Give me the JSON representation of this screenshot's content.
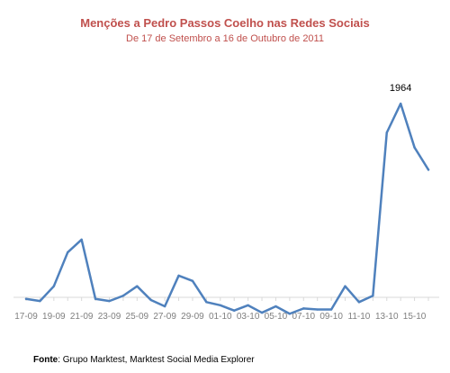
{
  "chart_data": {
    "type": "line",
    "title": "Menções a Pedro Passos Coelho nas Redes Sociais",
    "subtitle": "De 17 de Setembro a 16 de Outubro de 2011",
    "x": [
      "17-09",
      "18-09",
      "19-09",
      "20-09",
      "21-09",
      "22-09",
      "23-09",
      "24-09",
      "25-09",
      "26-09",
      "27-09",
      "28-09",
      "29-09",
      "30-09",
      "01-10",
      "02-10",
      "03-10",
      "04-10",
      "05-10",
      "06-10",
      "07-10",
      "08-10",
      "09-10",
      "10-10",
      "11-10",
      "12-10",
      "13-10",
      "14-10",
      "15-10",
      "16-10"
    ],
    "tick_labels": [
      "17-09",
      "19-09",
      "21-09",
      "23-09",
      "25-09",
      "27-09",
      "29-09",
      "01-10",
      "03-10",
      "05-10",
      "07-10",
      "09-10",
      "11-10",
      "13-10",
      "15-10"
    ],
    "series": [
      {
        "values": [
          120,
          100,
          240,
          560,
          680,
          120,
          100,
          150,
          240,
          110,
          50,
          340,
          290,
          90,
          60,
          10,
          60,
          -10,
          50,
          -20,
          30,
          20,
          20,
          240,
          90,
          150,
          1690,
          1964,
          1550,
          1340
        ]
      }
    ],
    "annotations": [
      {
        "x": "14-10",
        "label": "1964"
      }
    ],
    "ylim": [
      -120,
      2900
    ],
    "grid": false,
    "legend": "none",
    "xlabel": "",
    "ylabel": ""
  },
  "source": {
    "label": "Fonte",
    "text": ": Grupo Marktest, Marktest Social Media Explorer"
  },
  "colors": {
    "title": "#c0504d",
    "line": "#4f81bd",
    "axis": "#d9d9d9",
    "tick_text": "#7f7f7f",
    "annotation_text": "#000000"
  }
}
